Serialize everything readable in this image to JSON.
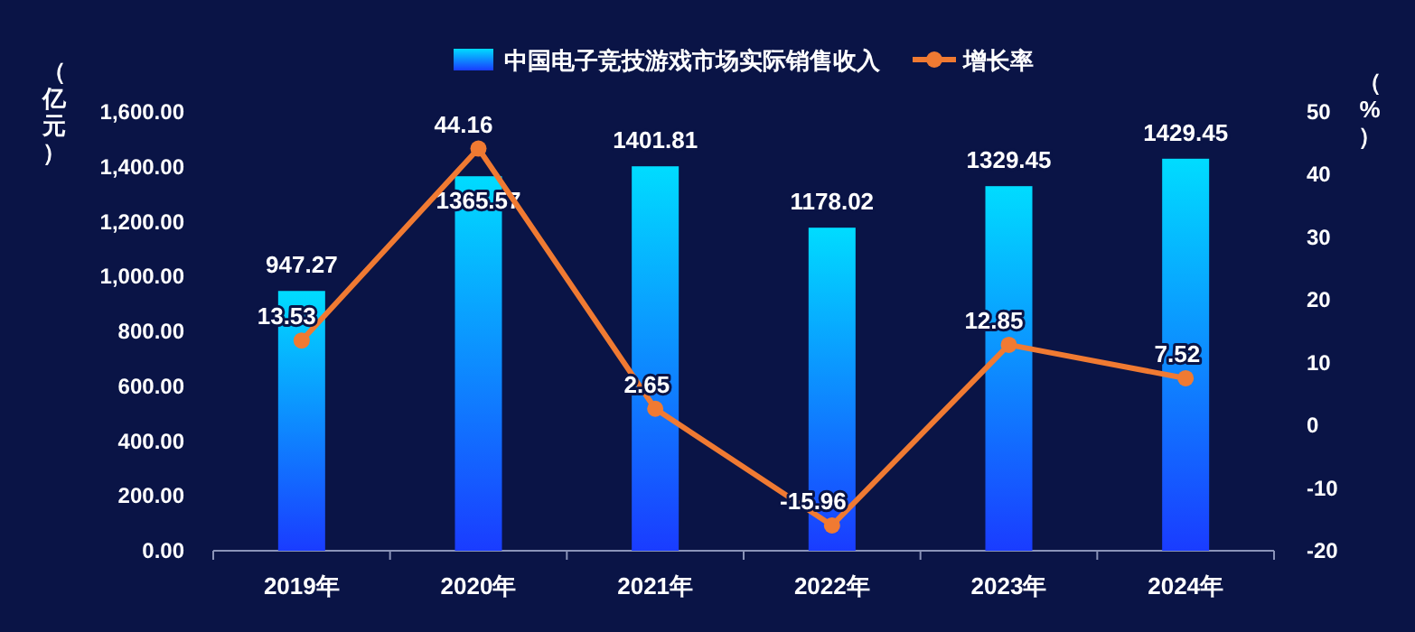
{
  "chart_data": {
    "type": "bar",
    "categories": [
      "2019年",
      "2020年",
      "2021年",
      "2022年",
      "2023年",
      "2024年"
    ],
    "series": [
      {
        "name": "中国电子竞技游戏市场实际销售收入",
        "color": "#1a3cff",
        "values": [
          947.27,
          1365.57,
          1401.81,
          1178.02,
          1329.45,
          1429.45
        ]
      },
      {
        "name": "增长率",
        "type": "line",
        "axis": "y2",
        "color": "#f07a32",
        "values": [
          13.53,
          44.16,
          2.65,
          -15.96,
          12.85,
          7.52
        ]
      }
    ],
    "ylabel": "（亿元）",
    "y2label": "（%）",
    "ylim": [
      0,
      1600
    ],
    "yticks": [
      {
        "value": 0,
        "label": "0.00"
      },
      {
        "value": 200,
        "label": "200.00"
      },
      {
        "value": 400,
        "label": "400.00"
      },
      {
        "value": 600,
        "label": "600.00"
      },
      {
        "value": 800,
        "label": "800.00"
      },
      {
        "value": 1000,
        "label": "1,000.00"
      },
      {
        "value": 1200,
        "label": "1,200.00"
      },
      {
        "value": 1400,
        "label": "1,400.00"
      },
      {
        "value": 1600,
        "label": "1,600.00"
      }
    ],
    "y2lim": [
      -20,
      50
    ],
    "y2ticks": [
      -20,
      -10,
      0,
      10,
      20,
      30,
      40,
      50
    ],
    "data_labels": true,
    "legend": "top",
    "marker": "circle",
    "grid": false
  }
}
